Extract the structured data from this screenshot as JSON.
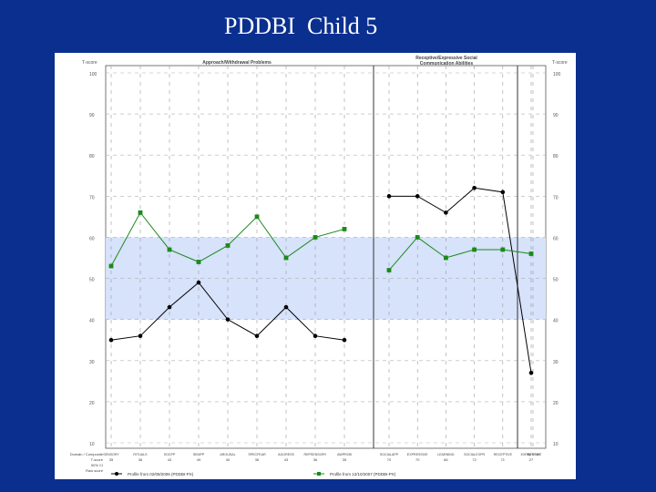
{
  "slide": {
    "title": "PDDBI  Child 5"
  },
  "chart_data": {
    "type": "line",
    "y_axis": {
      "left_label": "T-score",
      "right_label": "T-score",
      "ylim": [
        10,
        100
      ],
      "ticks": [
        10,
        20,
        30,
        40,
        50,
        60,
        70,
        80,
        90,
        100
      ],
      "grid": "dashed"
    },
    "average_band": [
      40,
      60
    ],
    "panels": [
      {
        "title": "Approach/Withdrawal Problems",
        "categories": [
          "SENSORY",
          "RITUALS",
          "SOCPP",
          "SEMPP",
          "AROUSAL",
          "SPECFEAR",
          "AGGRESS",
          "REPSENSORY",
          "AWPROB"
        ]
      },
      {
        "title": "Receptive/Expressive Social Communication Abilities",
        "categories": [
          "SOCIALAPP",
          "EXPRESSIVE",
          "LEARNING",
          "SOCIALEXPR",
          "RECEPTIVE",
          "EXPRESSIVE"
        ]
      },
      {
        "title": "",
        "categories": [
          "AUTISM"
        ]
      }
    ],
    "series": [
      {
        "name": "Profile from 02/09/2006 (PDDBI-PX)",
        "color": "#000000",
        "marker": "circle",
        "values": [
          35,
          36,
          43,
          49,
          40,
          36,
          43,
          36,
          35,
          70,
          70,
          66,
          72,
          71,
          27
        ]
      },
      {
        "name": "Profile from 12/10/2007 (PDDBI-PX)",
        "color": "#1a8a1a",
        "marker": "square",
        "values": [
          53,
          66,
          57,
          54,
          58,
          65,
          55,
          60,
          62,
          52,
          60,
          55,
          57,
          57,
          56
        ]
      }
    ],
    "table": {
      "row_labels": [
        "Domain / Composite",
        "T-score",
        "90% CI",
        "Raw score"
      ],
      "tscore_row": [
        "35",
        "36",
        "43",
        "49",
        "40",
        "36",
        "43",
        "36",
        "35",
        "70",
        "70",
        "66",
        "72",
        "71",
        "27"
      ]
    }
  }
}
